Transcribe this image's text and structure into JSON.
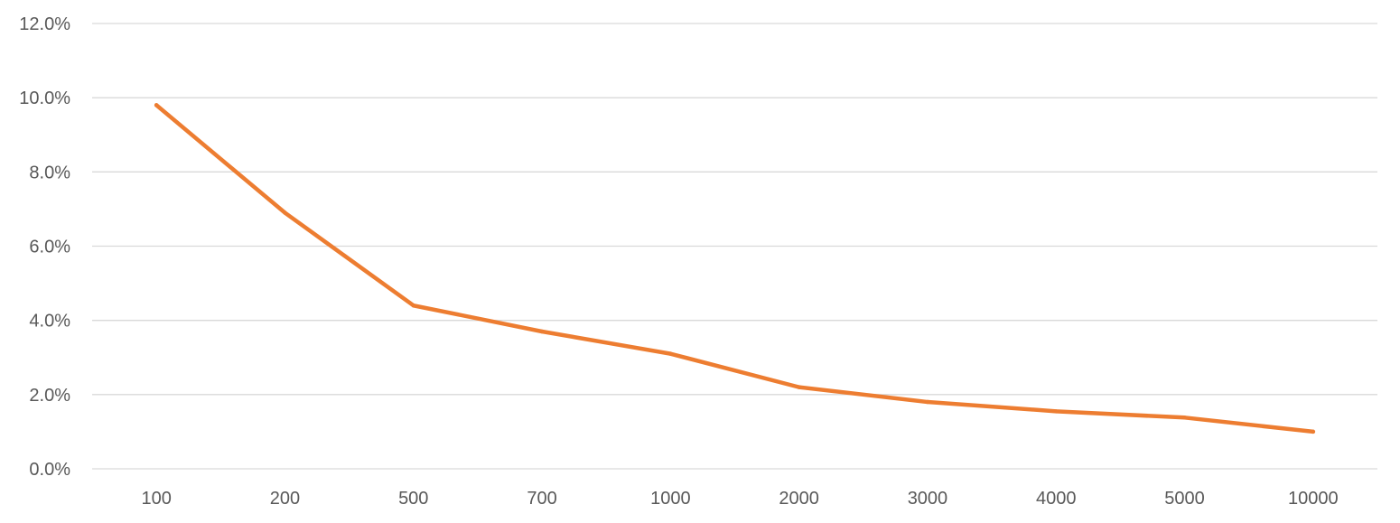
{
  "chart_data": {
    "type": "line",
    "title": "",
    "xlabel": "",
    "ylabel": "",
    "categories": [
      "100",
      "200",
      "500",
      "700",
      "1000",
      "2000",
      "3000",
      "4000",
      "5000",
      "10000"
    ],
    "series": [
      {
        "values": [
          9.8,
          6.9,
          4.4,
          3.7,
          3.1,
          2.2,
          1.8,
          1.55,
          1.38,
          1.0
        ],
        "color": "#ED7D31"
      }
    ],
    "ylim": [
      0,
      12
    ],
    "y_ticks": [
      0,
      2,
      4,
      6,
      8,
      10,
      12
    ],
    "y_tick_labels": [
      "0.0%",
      "2.0%",
      "4.0%",
      "6.0%",
      "8.0%",
      "10.0%",
      "12.0%"
    ],
    "y_format": "percent",
    "grid": true,
    "legend": "none"
  }
}
